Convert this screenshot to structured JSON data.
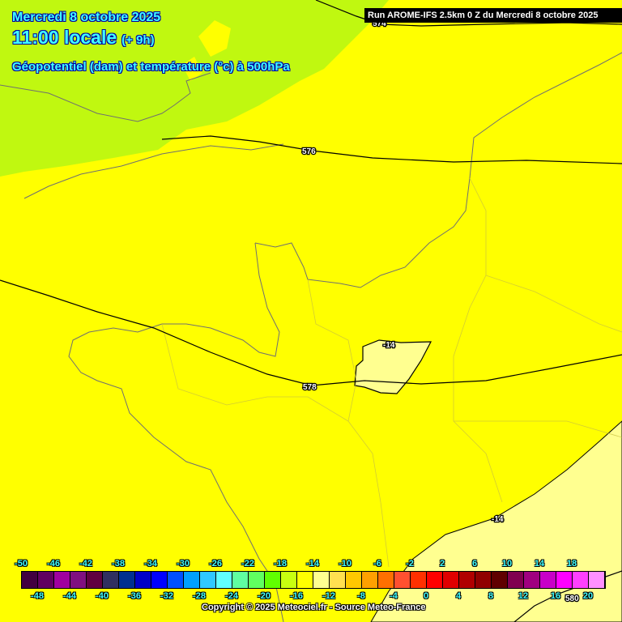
{
  "header": {
    "date": "Mercredi 8 octobre 2025",
    "time": "11:00 locale",
    "offset": "(+ 9h)",
    "parameter": "Géopotentiel (dam) et température (°c) à 500hPa",
    "run": "Run AROME-IFS 2.5km 0 Z du Mercredi 8 octobre 2025"
  },
  "contours": {
    "geopotential_labels": [
      "574",
      "576",
      "578",
      "580"
    ],
    "temperature_labels": [
      "-14",
      "-14"
    ]
  },
  "colors": {
    "green_zone": "#c0f810",
    "yellow_zone": "#ffff00",
    "pale_zone": "#ffff90",
    "border": "#808060",
    "contour": "#000000"
  },
  "legend": {
    "colors": [
      "#420040",
      "#600060",
      "#a000a0",
      "#801080",
      "#600040",
      "#303060",
      "#003090",
      "#0000c8",
      "#0000ff",
      "#0050ff",
      "#00a0ff",
      "#30c8ff",
      "#60ffff",
      "#60ffa0",
      "#60ff60",
      "#60ff00",
      "#c8ff10",
      "#ffff00",
      "#ffff90",
      "#ffe050",
      "#ffc800",
      "#ffa000",
      "#ff7000",
      "#ff5030",
      "#ff3000",
      "#ff0000",
      "#e00000",
      "#b00000",
      "#900000",
      "#600000",
      "#800050",
      "#a00080",
      "#c800c8",
      "#ff00ff",
      "#ff40ff",
      "#ff90ff"
    ],
    "top_labels": [
      "-50",
      "-46",
      "-42",
      "-38",
      "-34",
      "-30",
      "-26",
      "-22",
      "-18",
      "-14",
      "-10",
      "-6",
      "-2",
      "2",
      "6",
      "10",
      "14",
      "18"
    ],
    "bottom_labels": [
      "-48",
      "-44",
      "-40",
      "-36",
      "-32",
      "-28",
      "-24",
      "-20",
      "-16",
      "-12",
      "-8",
      "-4",
      "0",
      "4",
      "8",
      "12",
      "16",
      "20"
    ]
  },
  "copyright": "Copyright © 2025 Meteociel.fr - Source Meteo-France"
}
